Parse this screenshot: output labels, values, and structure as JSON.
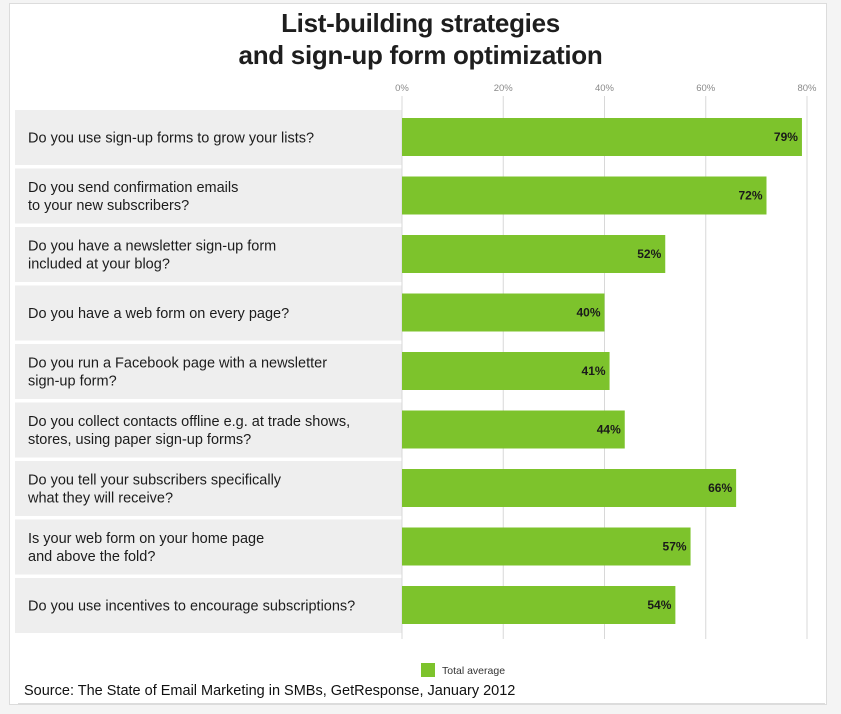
{
  "chart_data": {
    "type": "bar",
    "orientation": "horizontal",
    "title": [
      "List-building strategies",
      "and sign-up form optimization"
    ],
    "categories": [
      [
        "Do you use sign-up forms to grow your lists?"
      ],
      [
        "Do you send confirmation emails",
        "to your new subscribers?"
      ],
      [
        "Do you have a newsletter sign-up form",
        "included at your blog?"
      ],
      [
        "Do you have a web form on every page?"
      ],
      [
        "Do you run a Facebook page with a newsletter",
        "sign-up form?"
      ],
      [
        "Do you collect contacts offline e.g. at trade shows,",
        "stores, using paper sign-up forms?"
      ],
      [
        "Do you tell your subscribers specifically",
        "what they will receive?"
      ],
      [
        "Is your web form on your home page",
        "and above the fold?"
      ],
      [
        "Do you use incentives to encourage subscriptions?"
      ]
    ],
    "series": [
      {
        "name": "Total average",
        "values": [
          79,
          72,
          52,
          40,
          41,
          44,
          66,
          57,
          54
        ]
      }
    ],
    "data_labels": [
      "79%",
      "72%",
      "52%",
      "40%",
      "41%",
      "44%",
      "66%",
      "57%",
      "54%"
    ],
    "xlim": [
      0,
      80
    ],
    "ticks": [
      0,
      20,
      40,
      60,
      80
    ],
    "tick_labels": [
      "0%",
      "20%",
      "40%",
      "60%",
      "80%"
    ],
    "legend_position": "bottom",
    "grid": true,
    "bar_color": "#7dc32c",
    "row_color": "#eeeeee"
  },
  "source": "Source: The State of Email Marketing in SMBs, GetResponse, January 2012"
}
